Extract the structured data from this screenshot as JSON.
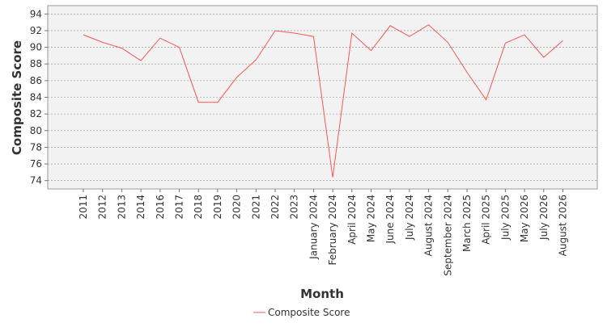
{
  "chart_data": {
    "type": "line",
    "title": "",
    "xlabel": "Month",
    "ylabel": "Composite Score",
    "ylim": [
      73,
      95
    ],
    "yticks": [
      74,
      76,
      78,
      80,
      82,
      84,
      86,
      88,
      90,
      92,
      94
    ],
    "grid": "horizontal dashed",
    "legend": "bottom-center",
    "categories": [
      "2011",
      "2012",
      "2013",
      "2014",
      "2016",
      "2017",
      "2018",
      "2019",
      "2020",
      "2021",
      "2022",
      "2023",
      "January 2024",
      "February 2024",
      "April 2024",
      "May 2024",
      "June 2024",
      "July 2024",
      "August 2024",
      "September 2024",
      "March 2025",
      "April 2025",
      "July 2025",
      "May 2026",
      "July 2026",
      "August 2026"
    ],
    "series": [
      {
        "name": "Composite Score",
        "color": "#ff5555",
        "values": [
          91.5,
          90.6,
          89.9,
          88.4,
          91.1,
          90.0,
          83.4,
          83.4,
          86.4,
          88.5,
          92.0,
          91.7,
          91.3,
          74.4,
          91.7,
          89.6,
          92.6,
          91.3,
          92.7,
          90.6,
          87.0,
          83.7,
          90.5,
          91.5,
          88.8,
          90.8
        ]
      }
    ]
  }
}
